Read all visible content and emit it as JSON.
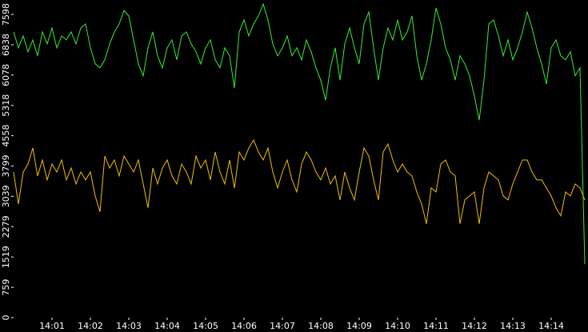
{
  "chart_data": {
    "type": "line",
    "categories": [
      null,
      null,
      null,
      null,
      null,
      null,
      null,
      null,
      "14:01",
      null,
      null,
      null,
      null,
      null,
      null,
      null,
      "14:02",
      null,
      null,
      null,
      null,
      null,
      null,
      null,
      "14:03",
      null,
      null,
      null,
      null,
      null,
      null,
      null,
      "14:04",
      null,
      null,
      null,
      null,
      null,
      null,
      null,
      "14:05",
      null,
      null,
      null,
      null,
      null,
      null,
      null,
      "14:06",
      null,
      null,
      null,
      null,
      null,
      null,
      null,
      "14:07",
      null,
      null,
      null,
      null,
      null,
      null,
      null,
      "14:08",
      null,
      null,
      null,
      null,
      null,
      null,
      null,
      "14:09",
      null,
      null,
      null,
      null,
      null,
      null,
      null,
      "14:10",
      null,
      null,
      null,
      null,
      null,
      null,
      null,
      "14:11",
      null,
      null,
      null,
      null,
      null,
      null,
      null,
      "14:12",
      null,
      null,
      null,
      null,
      null,
      null,
      null,
      "14:13",
      null,
      null,
      null,
      null,
      null,
      null,
      null,
      "14:14",
      null,
      null,
      null,
      null,
      null,
      null,
      null
    ],
    "series": [
      {
        "color": "#33ee33",
        "values": [
          7160,
          6760,
          7060,
          6660,
          6960,
          6560,
          7160,
          6860,
          7260,
          6760,
          7060,
          6960,
          7160,
          6860,
          7260,
          7360,
          6760,
          6360,
          6260,
          6460,
          6860,
          7160,
          7360,
          7700,
          7560,
          6960,
          6360,
          6060,
          6760,
          7160,
          6560,
          6260,
          6760,
          6960,
          6460,
          7060,
          7160,
          6860,
          6660,
          6360,
          6760,
          6960,
          6460,
          6260,
          6760,
          6560,
          5750,
          7160,
          7460,
          7060,
          7360,
          7560,
          7860,
          7460,
          6860,
          6560,
          6760,
          7060,
          6560,
          6760,
          6460,
          6960,
          6660,
          6260,
          5950,
          5450,
          6260,
          6760,
          5950,
          6860,
          7260,
          6760,
          6360,
          7360,
          7660,
          6760,
          5950,
          6760,
          7260,
          6960,
          7460,
          6960,
          7160,
          7560,
          6560,
          5950,
          6360,
          6960,
          7760,
          7360,
          6760,
          6460,
          5950,
          6560,
          6360,
          6060,
          5550,
          4950,
          5950,
          7360,
          7460,
          7060,
          6560,
          6960,
          6460,
          6760,
          7160,
          7660,
          7260,
          6760,
          6360,
          5850,
          6760,
          6960,
          6560,
          6460,
          6660,
          6060,
          6260,
          1340
        ]
      },
      {
        "color": "#f0c000",
        "values": [
          3650,
          2850,
          3650,
          3850,
          4250,
          3550,
          3950,
          3450,
          3850,
          3650,
          3950,
          3450,
          3750,
          3350,
          3650,
          3450,
          3650,
          3050,
          2650,
          4050,
          3750,
          3950,
          3550,
          4050,
          3850,
          3650,
          3950,
          3350,
          2750,
          3750,
          3350,
          3750,
          3950,
          3550,
          3350,
          3850,
          3650,
          3350,
          4050,
          3750,
          3950,
          3450,
          4150,
          3650,
          3350,
          3950,
          3250,
          4150,
          3950,
          4250,
          4450,
          4150,
          3950,
          4250,
          3650,
          3250,
          3650,
          3950,
          3450,
          3150,
          3850,
          4150,
          3950,
          3650,
          3450,
          3750,
          3350,
          3550,
          2950,
          3650,
          3250,
          2950,
          3650,
          4250,
          4050,
          3450,
          2950,
          4150,
          4350,
          3950,
          3650,
          3850,
          3650,
          3550,
          3150,
          2850,
          2350,
          3250,
          3150,
          3850,
          3950,
          3650,
          3550,
          2350,
          2950,
          3050,
          3150,
          2350,
          3250,
          3650,
          3550,
          3450,
          3050,
          2950,
          3350,
          3650,
          3950,
          3950,
          3650,
          3450,
          3450,
          3250,
          3050,
          2750,
          2550,
          3150,
          3050,
          3350,
          3250,
          2950
        ]
      }
    ],
    "ylim": [
      0,
      7960
    ],
    "yticks": [
      0,
      759,
      1519,
      2279,
      3039,
      3799,
      4558,
      5318,
      6078,
      6838,
      7598
    ],
    "grid": false
  }
}
